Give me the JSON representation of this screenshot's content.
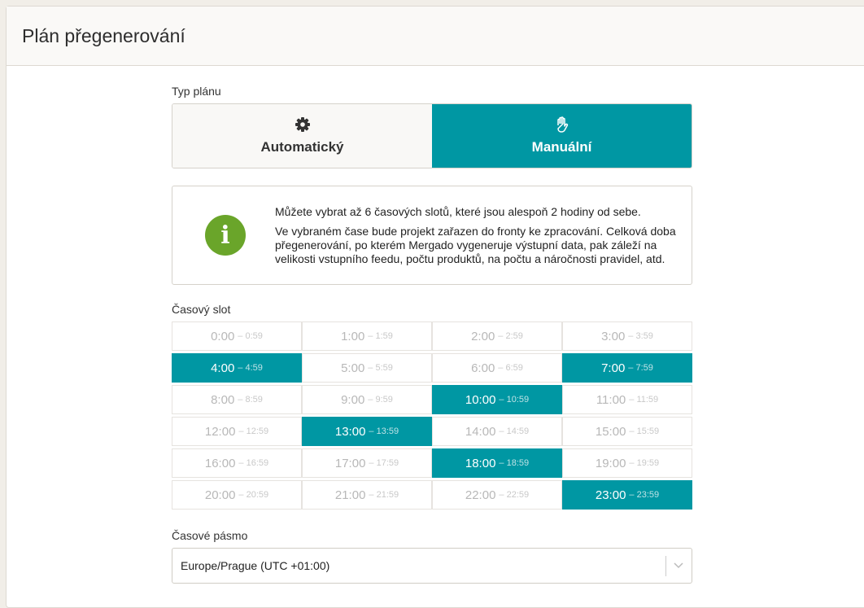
{
  "header": {
    "title": "Plán přegenerování"
  },
  "plan_type": {
    "label": "Typ plánu",
    "options": [
      {
        "label": "Automatický",
        "icon": "gear-icon",
        "active": false
      },
      {
        "label": "Manuální",
        "icon": "hand-icon",
        "active": true
      }
    ]
  },
  "info": {
    "icon": "info-icon",
    "line1": "Můžete vybrat až 6 časových slotů, které jsou alespoň 2 hodiny od sebe.",
    "line2": "Ve vybraném čase bude projekt zařazen do fronty ke zpracování. Celková doba přegenerování, po kterém Mergado vygeneruje výstupní data, pak záleží na velikosti vstupního feedu, počtu produktů, na počtu a náročnosti pravidel, atd."
  },
  "slots": {
    "label": "Časový slot",
    "items": [
      {
        "start": "0:00",
        "end": "– 0:59",
        "selected": false
      },
      {
        "start": "1:00",
        "end": "– 1:59",
        "selected": false
      },
      {
        "start": "2:00",
        "end": "– 2:59",
        "selected": false
      },
      {
        "start": "3:00",
        "end": "– 3:59",
        "selected": false
      },
      {
        "start": "4:00",
        "end": "– 4:59",
        "selected": true
      },
      {
        "start": "5:00",
        "end": "– 5:59",
        "selected": false
      },
      {
        "start": "6:00",
        "end": "– 6:59",
        "selected": false
      },
      {
        "start": "7:00",
        "end": "– 7:59",
        "selected": true
      },
      {
        "start": "8:00",
        "end": "– 8:59",
        "selected": false
      },
      {
        "start": "9:00",
        "end": "– 9:59",
        "selected": false
      },
      {
        "start": "10:00",
        "end": "– 10:59",
        "selected": true
      },
      {
        "start": "11:00",
        "end": "– 11:59",
        "selected": false
      },
      {
        "start": "12:00",
        "end": "– 12:59",
        "selected": false
      },
      {
        "start": "13:00",
        "end": "– 13:59",
        "selected": true
      },
      {
        "start": "14:00",
        "end": "– 14:59",
        "selected": false
      },
      {
        "start": "15:00",
        "end": "– 15:59",
        "selected": false
      },
      {
        "start": "16:00",
        "end": "– 16:59",
        "selected": false
      },
      {
        "start": "17:00",
        "end": "– 17:59",
        "selected": false
      },
      {
        "start": "18:00",
        "end": "– 18:59",
        "selected": true
      },
      {
        "start": "19:00",
        "end": "– 19:59",
        "selected": false
      },
      {
        "start": "20:00",
        "end": "– 20:59",
        "selected": false
      },
      {
        "start": "21:00",
        "end": "– 21:59",
        "selected": false
      },
      {
        "start": "22:00",
        "end": "– 22:59",
        "selected": false
      },
      {
        "start": "23:00",
        "end": "– 23:59",
        "selected": true
      }
    ]
  },
  "timezone": {
    "label": "Časové pásmo",
    "value": "Europe/Prague (UTC +01:00)"
  },
  "colors": {
    "accent": "#0097a3",
    "info": "#6aa52a"
  }
}
